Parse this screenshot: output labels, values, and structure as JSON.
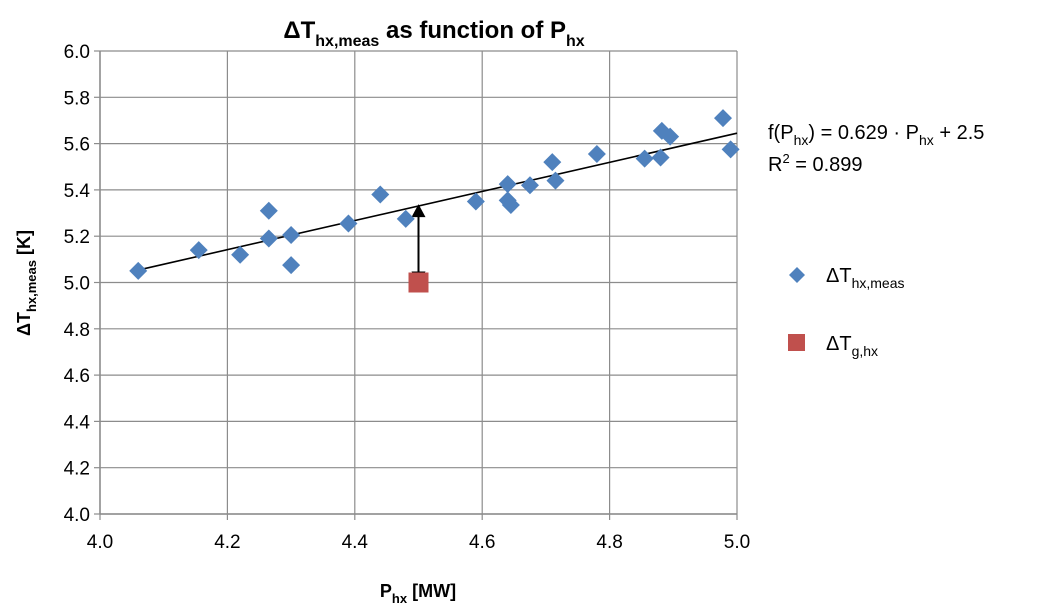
{
  "chart_data": {
    "type": "scatter",
    "title": {
      "main": "ΔT",
      "sub": "hx,meas",
      "mid": " as function of P",
      "sub2": "hx"
    },
    "xlabel": {
      "main": "P",
      "sub": "hx",
      "rest": " [MW]"
    },
    "ylabel": {
      "main": "ΔT",
      "sub": "hx,meas",
      "rest": " [K]"
    },
    "xlim": [
      4.0,
      5.0
    ],
    "ylim": [
      4.0,
      6.0
    ],
    "xticks": [
      "4.0",
      "4.2",
      "4.4",
      "4.6",
      "4.8",
      "5.0"
    ],
    "yticks": [
      "4.0",
      "4.2",
      "4.4",
      "4.6",
      "4.8",
      "5.0",
      "5.2",
      "5.4",
      "5.6",
      "5.8",
      "6.0"
    ],
    "grid": true,
    "legend_position": "right",
    "series": [
      {
        "name": {
          "main": "ΔT",
          "sub": "hx,meas"
        },
        "color": "#4f81bd",
        "marker": "diamond",
        "points": [
          [
            4.06,
            5.05
          ],
          [
            4.155,
            5.14
          ],
          [
            4.22,
            5.12
          ],
          [
            4.265,
            5.31
          ],
          [
            4.265,
            5.19
          ],
          [
            4.3,
            5.205
          ],
          [
            4.3,
            5.075
          ],
          [
            4.39,
            5.255
          ],
          [
            4.44,
            5.38
          ],
          [
            4.48,
            5.275
          ],
          [
            4.59,
            5.35
          ],
          [
            4.64,
            5.425
          ],
          [
            4.64,
            5.355
          ],
          [
            4.645,
            5.335
          ],
          [
            4.675,
            5.42
          ],
          [
            4.71,
            5.52
          ],
          [
            4.715,
            5.44
          ],
          [
            4.78,
            5.555
          ],
          [
            4.855,
            5.535
          ],
          [
            4.88,
            5.54
          ],
          [
            4.882,
            5.655
          ],
          [
            4.895,
            5.63
          ],
          [
            4.978,
            5.71
          ],
          [
            4.99,
            5.575
          ]
        ]
      },
      {
        "name": {
          "main": "ΔT",
          "sub": "g,hx"
        },
        "color": "#c0504d",
        "marker": "square",
        "points": [
          [
            4.5,
            5.0
          ]
        ]
      }
    ],
    "trendline": {
      "slope": 0.629,
      "intercept": 2.5,
      "x_range": [
        4.06,
        5.0
      ],
      "equation": {
        "pre": "f(P",
        "sub": "hx",
        "mid": ") = 0.629 · P",
        "sub2": "hx",
        "post": " + 2.5"
      },
      "r_squared": {
        "pre": "R",
        "sup": "2",
        "post": " = 0.899"
      }
    },
    "arrow": {
      "x": 4.5,
      "y_from": 5.0,
      "y_to": 5.33
    }
  }
}
